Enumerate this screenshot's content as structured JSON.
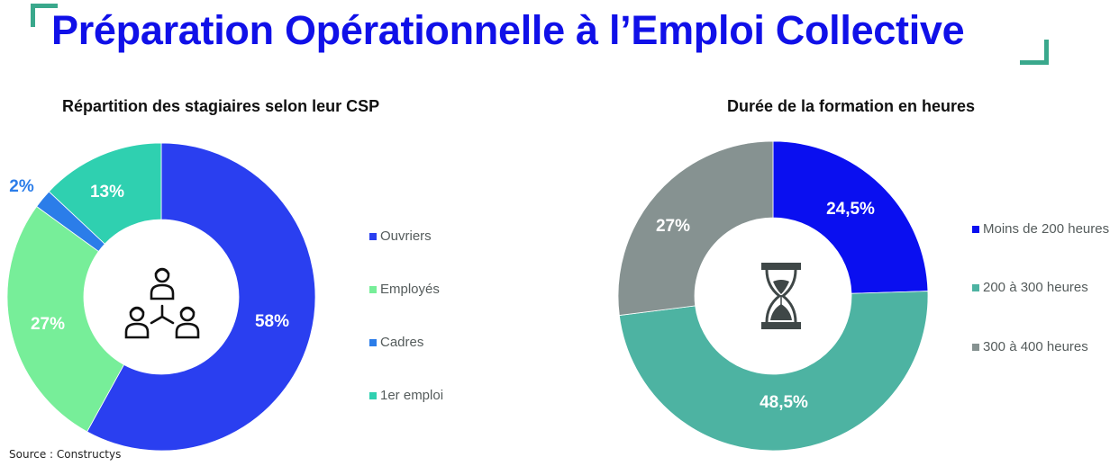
{
  "header": {
    "title": "Préparation Opérationnelle à l’Emploi Collective",
    "title_color": "#1010e8",
    "bracket_color": "#3aa88c"
  },
  "left_chart": {
    "title": "Répartition des stagiaires selon leur CSP",
    "center_icon": "people-network-icon",
    "labels": [
      "58%",
      "27%",
      "2%",
      "13%"
    ],
    "legend": [
      {
        "label": "Ouvriers",
        "color": "#2a3ff0"
      },
      {
        "label": "Employés",
        "color": "#77ee99"
      },
      {
        "label": "Cadres",
        "color": "#2b7de9"
      },
      {
        "label": "1er emploi",
        "color": "#2fd0b0"
      }
    ]
  },
  "right_chart": {
    "title": "Durée de la formation en heures",
    "center_icon": "hourglass-icon",
    "labels": [
      "24,5%",
      "48,5%",
      "27%"
    ],
    "legend": [
      {
        "label": "Moins de 200 heures",
        "color": "#0a0ff0"
      },
      {
        "label": "200 à 300 heures",
        "color": "#4db3a2"
      },
      {
        "label": "300 à 400 heures",
        "color": "#869291"
      }
    ]
  },
  "footer": {
    "source": "Source : Constructys"
  },
  "chart_data": [
    {
      "type": "pie",
      "subtype": "donut",
      "title": "Répartition des stagiaires selon leur CSP",
      "categories": [
        "Ouvriers",
        "Employés",
        "Cadres",
        "1er emploi"
      ],
      "values": [
        58,
        27,
        2,
        13
      ],
      "unit": "%",
      "colors": [
        "#2a3ff0",
        "#77ee99",
        "#2b7de9",
        "#2fd0b0"
      ],
      "start_angle": "12 o'clock, clockwise",
      "legend_position": "right"
    },
    {
      "type": "pie",
      "subtype": "donut",
      "title": "Durée de la formation en heures",
      "categories": [
        "Moins de 200 heures",
        "200 à 300 heures",
        "300 à 400 heures"
      ],
      "values": [
        24.5,
        48.5,
        27
      ],
      "unit": "%",
      "colors": [
        "#0a0ff0",
        "#4db3a2",
        "#869291"
      ],
      "start_angle": "12 o'clock, clockwise",
      "legend_position": "right"
    }
  ]
}
